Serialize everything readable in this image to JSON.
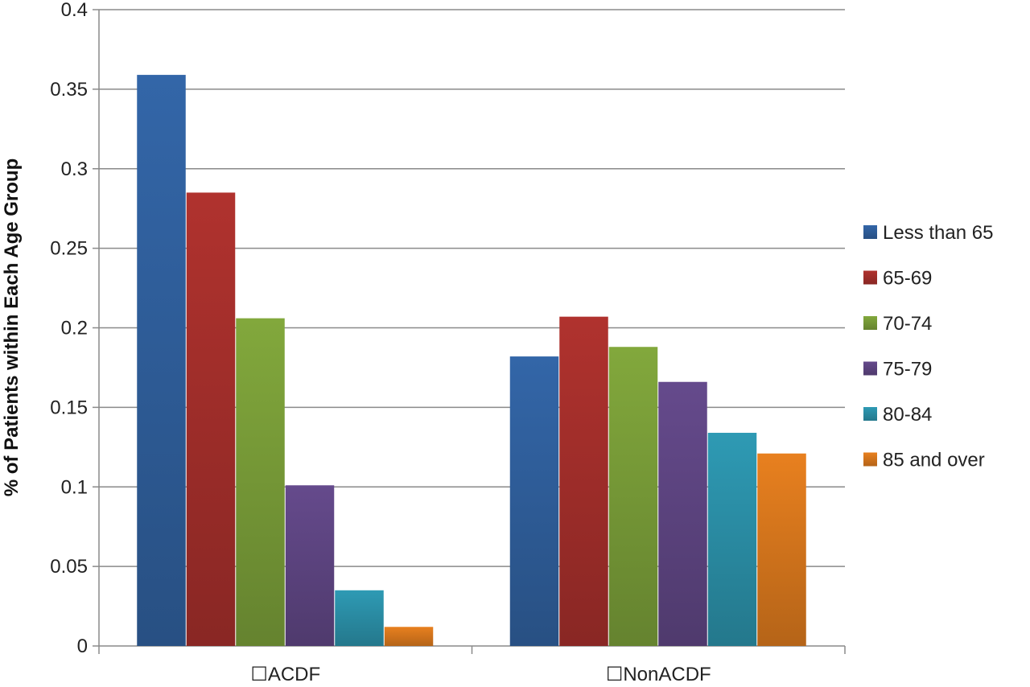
{
  "chart_data": {
    "type": "bar",
    "categories": [
      "☐ACDF",
      "☐NonACDF"
    ],
    "series": [
      {
        "name": "Less than 65",
        "values": [
          0.359,
          0.182
        ],
        "color": "#3366a8"
      },
      {
        "name": "65-69",
        "values": [
          0.285,
          0.207
        ],
        "color": "#b0322e"
      },
      {
        "name": "70-74",
        "values": [
          0.206,
          0.188
        ],
        "color": "#82a83c"
      },
      {
        "name": "75-79",
        "values": [
          0.101,
          0.166
        ],
        "color": "#654a8c"
      },
      {
        "name": "80-84",
        "values": [
          0.035,
          0.134
        ],
        "color": "#2e9ab4"
      },
      {
        "name": "85 and over",
        "values": [
          0.012,
          0.121
        ],
        "color": "#e8801f"
      }
    ],
    "ylabel": "% of Patients within Each Age Group",
    "ylim": [
      0,
      0.4
    ],
    "yticks": [
      "0",
      "0.05",
      "0.1",
      "0.15",
      "0.2",
      "0.25",
      "0.3",
      "0.35",
      "0.4"
    ],
    "grid": true,
    "legend_position": "right"
  }
}
